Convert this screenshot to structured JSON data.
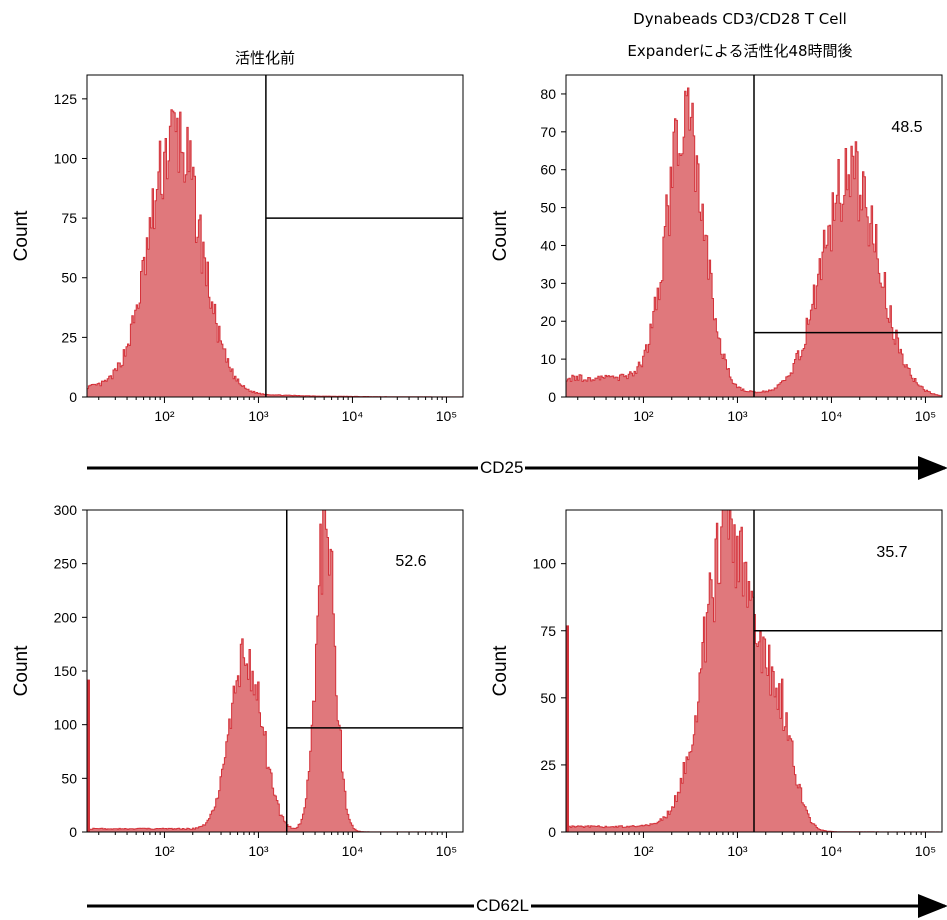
{
  "titles": {
    "top_left": "活性化前",
    "top_right_line1": "Dynabeads  CD3/CD28  T  Cell",
    "top_right_line2": "Expanderによる活性化48時間後"
  },
  "axis_labels": {
    "x_top_row": "CD25",
    "x_bottom_row": "CD62L",
    "y": "Count"
  },
  "colors": {
    "histogram_fill": "#e0787c",
    "histogram_stroke": "#d4323a",
    "gate_line": "#000000"
  },
  "chart_data": [
    {
      "id": "cd25-before",
      "type": "histogram",
      "x_scale": "log",
      "xlim": [
        15,
        150000
      ],
      "ylim": [
        0,
        135
      ],
      "ylabel": "Count",
      "x_ticks": [
        100,
        1000,
        10000,
        100000
      ],
      "x_tick_labels": [
        "10²",
        "10³",
        "10⁴",
        "10⁵"
      ],
      "y_ticks": [
        0,
        25,
        50,
        75,
        100,
        125
      ],
      "peaks": [
        {
          "center": 130,
          "width_decades": 0.27,
          "height": 105
        }
      ],
      "noise_floor": 4,
      "gate": {
        "vertical_x": 1200,
        "horizontal_y": 75
      },
      "gate_value": ""
    },
    {
      "id": "cd25-after",
      "type": "histogram",
      "x_scale": "log",
      "xlim": [
        15,
        150000
      ],
      "ylim": [
        0,
        85
      ],
      "ylabel": "Count",
      "x_ticks": [
        100,
        1000,
        10000,
        100000
      ],
      "x_tick_labels": [
        "10²",
        "10³",
        "10⁴",
        "10⁵"
      ],
      "y_ticks": [
        0,
        10,
        20,
        30,
        40,
        50,
        60,
        70,
        80
      ],
      "peaks": [
        {
          "center": 280,
          "width_decades": 0.2,
          "height": 68
        },
        {
          "center": 16000,
          "width_decades": 0.3,
          "height": 58
        }
      ],
      "noise_floor": 5,
      "gate": {
        "vertical_x": 1500,
        "horizontal_y": 17
      },
      "gate_value": "48.5"
    },
    {
      "id": "cd62l-before",
      "type": "histogram",
      "x_scale": "log",
      "xlim": [
        15,
        150000
      ],
      "ylim": [
        0,
        300
      ],
      "ylabel": "Count",
      "x_ticks": [
        100,
        1000,
        10000,
        100000
      ],
      "x_tick_labels": [
        "10²",
        "10³",
        "10⁴",
        "10⁵"
      ],
      "y_ticks": [
        0,
        50,
        100,
        150,
        200,
        250,
        300
      ],
      "peaks": [
        {
          "center": 750,
          "width_decades": 0.17,
          "height": 160
        },
        {
          "center": 5200,
          "width_decades": 0.1,
          "height": 290
        }
      ],
      "noise_floor": 3,
      "left_edge_spike": 142,
      "gate": {
        "vertical_x": 2000,
        "horizontal_y": 97
      },
      "gate_value": "52.6"
    },
    {
      "id": "cd62l-after",
      "type": "histogram",
      "x_scale": "log",
      "xlim": [
        15,
        150000
      ],
      "ylim": [
        0,
        120
      ],
      "ylabel": "Count",
      "x_ticks": [
        100,
        1000,
        10000,
        100000
      ],
      "x_tick_labels": [
        "10²",
        "10³",
        "10⁴",
        "10⁵"
      ],
      "y_ticks": [
        0,
        25,
        50,
        75,
        100
      ],
      "peaks": [
        {
          "center": 800,
          "width_decades": 0.26,
          "height": 110
        },
        {
          "center": 2700,
          "width_decades": 0.16,
          "height": 40
        }
      ],
      "noise_floor": 2,
      "left_edge_spike": 77,
      "gate": {
        "vertical_x": 1500,
        "horizontal_y": 75
      },
      "gate_value": "35.7"
    }
  ]
}
